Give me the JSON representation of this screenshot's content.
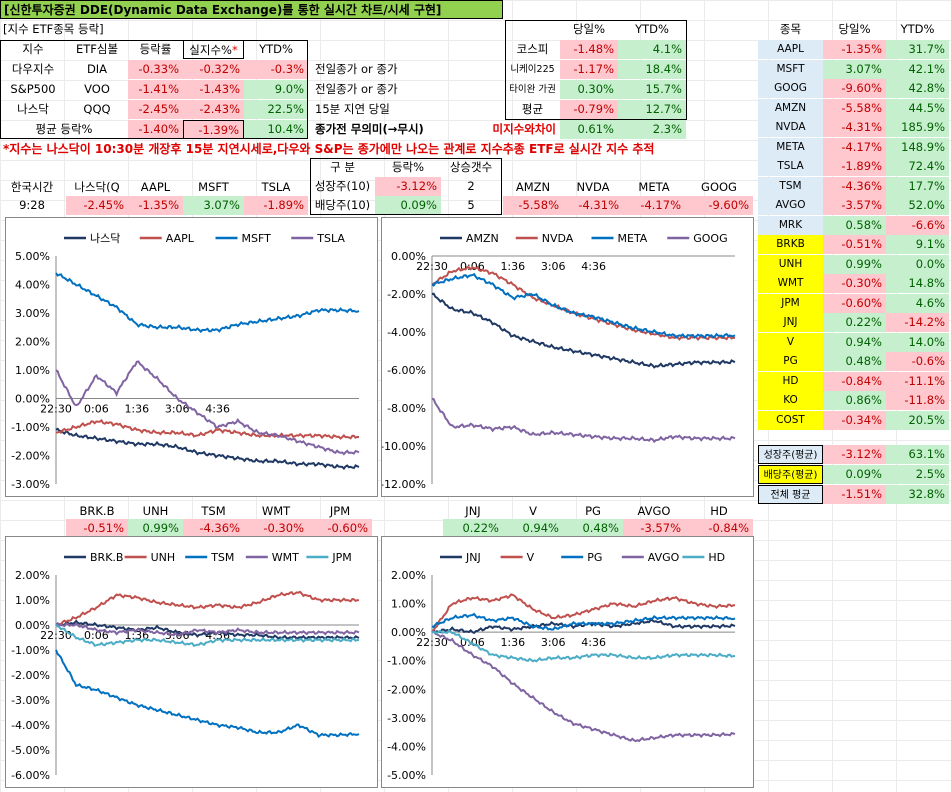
{
  "title": "[신한투자증권 DDE(Dynamic Data Exchange)를 통한 실시간 차트/시세 구현]",
  "index_section": {
    "caption": "[지수 ETF종목 등락]",
    "headers": [
      "지수",
      "ETF심볼",
      "등락률",
      "실지수%",
      "YTD%"
    ],
    "star": "*",
    "rows": [
      {
        "name": "다우지수",
        "etf": "DIA",
        "chg": "-0.33%",
        "real": "-0.32%",
        "ytd": "-0.3%",
        "note": "전일종가 or 종가"
      },
      {
        "name": "S&P500",
        "etf": "VOO",
        "chg": "-1.41%",
        "real": "-1.43%",
        "ytd": "9.0%",
        "note": "전일종가 or 종가"
      },
      {
        "name": "나스닥",
        "etf": "QQQ",
        "chg": "-2.45%",
        "real": "-2.43%",
        "ytd": "22.5%",
        "note": "15분 지연 당일"
      }
    ],
    "avg": {
      "label": "평균 등락%",
      "chg": "-1.40%",
      "real": "-1.39%",
      "ytd": "10.4%",
      "note": "종가전 무의미(→무시)"
    }
  },
  "korea": {
    "headers": [
      "당일%",
      "YTD%"
    ],
    "rows": [
      {
        "name": "코스피",
        "day": "-1.48%",
        "ytd": "4.1%"
      },
      {
        "name": "니케이225",
        "day": "-1.17%",
        "ytd": "18.4%"
      },
      {
        "name": "타이완 가권",
        "day": "0.30%",
        "ytd": "15.7%"
      },
      {
        "name": "평균",
        "day": "-0.79%",
        "ytd": "12.7%"
      }
    ],
    "diff_label": "미지수와차이",
    "diff_day": "0.61%",
    "diff_ytd": "2.3%"
  },
  "notice": "*지수는 나스닥이 10:30분 개장후 15분 지연시세로,다우와 S&P는 종가에만 나오는 관계로 지수추종 ETF로 실시간 지수 추적",
  "korea_time": {
    "label": "한국시간",
    "value": "9:28"
  },
  "quote_strip1": {
    "names": [
      "나스닥(Q",
      "AAPL",
      "MSFT",
      "TSLA"
    ],
    "values": [
      "-2.45%",
      "-1.35%",
      "3.07%",
      "-1.89%"
    ]
  },
  "growth_div": {
    "headers": [
      "구 분",
      "등락%",
      "상승갯수"
    ],
    "rows": [
      {
        "name": "성장주(10)",
        "chg": "-3.12%",
        "count": "2"
      },
      {
        "name": "배당주(10)",
        "chg": "0.09%",
        "count": "5"
      }
    ]
  },
  "quote_strip2": {
    "names": [
      "AMZN",
      "NVDA",
      "META",
      "GOOG"
    ],
    "values": [
      "-5.58%",
      "-4.31%",
      "-4.17%",
      "-9.60%"
    ]
  },
  "stock_table": {
    "headers": [
      "종목",
      "당일%",
      "YTD%"
    ],
    "rows": [
      {
        "name": "AAPL",
        "day": "-1.35%",
        "ytd": "31.7%",
        "group": "g"
      },
      {
        "name": "MSFT",
        "day": "3.07%",
        "ytd": "42.1%",
        "group": "g"
      },
      {
        "name": "GOOG",
        "day": "-9.60%",
        "ytd": "42.8%",
        "group": "g"
      },
      {
        "name": "AMZN",
        "day": "-5.58%",
        "ytd": "44.5%",
        "group": "g"
      },
      {
        "name": "NVDA",
        "day": "-4.31%",
        "ytd": "185.9%",
        "group": "g"
      },
      {
        "name": "META",
        "day": "-4.17%",
        "ytd": "148.9%",
        "group": "g"
      },
      {
        "name": "TSLA",
        "day": "-1.89%",
        "ytd": "72.4%",
        "group": "g"
      },
      {
        "name": "TSM",
        "day": "-4.36%",
        "ytd": "17.7%",
        "group": "g"
      },
      {
        "name": "AVGO",
        "day": "-3.57%",
        "ytd": "52.0%",
        "group": "g"
      },
      {
        "name": "MRK",
        "day": "0.58%",
        "ytd": "-6.6%",
        "group": "g"
      },
      {
        "name": "BRKB",
        "day": "-0.51%",
        "ytd": "9.1%",
        "group": "d"
      },
      {
        "name": "UNH",
        "day": "0.99%",
        "ytd": "0.0%",
        "group": "d"
      },
      {
        "name": "WMT",
        "day": "-0.30%",
        "ytd": "14.8%",
        "group": "d"
      },
      {
        "name": "JPM",
        "day": "-0.60%",
        "ytd": "4.6%",
        "group": "d"
      },
      {
        "name": "JNJ",
        "day": "0.22%",
        "ytd": "-14.2%",
        "group": "d"
      },
      {
        "name": "V",
        "day": "0.94%",
        "ytd": "14.0%",
        "group": "d"
      },
      {
        "name": "PG",
        "day": "0.48%",
        "ytd": "-0.6%",
        "group": "d"
      },
      {
        "name": "HD",
        "day": "-0.84%",
        "ytd": "-11.1%",
        "group": "d"
      },
      {
        "name": "KO",
        "day": "0.86%",
        "ytd": "-11.8%",
        "group": "d"
      },
      {
        "name": "COST",
        "day": "-0.34%",
        "ytd": "20.5%",
        "group": "d"
      }
    ],
    "summary": [
      {
        "name": "성장주(평균)",
        "day": "-3.12%",
        "ytd": "63.1%",
        "group": "g"
      },
      {
        "name": "배당주(평균)",
        "day": "0.09%",
        "ytd": "2.5%",
        "group": "d"
      },
      {
        "name": "전체 평균",
        "day": "-1.51%",
        "ytd": "32.8%",
        "group": "t"
      }
    ]
  },
  "quote_strip3": {
    "names": [
      "BRK.B",
      "UNH",
      "TSM",
      "WMT",
      "JPM"
    ],
    "values": [
      "-0.51%",
      "0.99%",
      "-4.36%",
      "-0.30%",
      "-0.60%"
    ]
  },
  "quote_strip4": {
    "names": [
      "JNJ",
      "V",
      "PG",
      "AVGO",
      "HD"
    ],
    "values": [
      "0.22%",
      "0.94%",
      "0.48%",
      "-3.57%",
      "-0.84%"
    ]
  },
  "colors": {
    "navy": "#1f3864",
    "red": "#c0504d",
    "blue": "#0070c0",
    "purple": "#8064a2",
    "teal": "#4bacc6",
    "pos_bg": "#c6efce",
    "neg_bg": "#ffc7ce"
  },
  "chart_data": [
    {
      "type": "line",
      "series": [
        {
          "name": "나스닥",
          "color": "#1f3864",
          "values": [
            -1.1,
            -1.3,
            -1.4,
            -1.5,
            -1.6,
            -1.6,
            -1.7,
            -1.9,
            -2.0,
            -2.1,
            -2.2,
            -2.2,
            -2.3,
            -2.3,
            -2.4,
            -2.4
          ]
        },
        {
          "name": "AAPL",
          "color": "#c0504d",
          "values": [
            -1.2,
            -1.0,
            -0.8,
            -0.9,
            -1.1,
            -1.2,
            -1.2,
            -1.3,
            -1.1,
            -1.2,
            -1.3,
            -1.3,
            -1.3,
            -1.3,
            -1.35,
            -1.35
          ]
        },
        {
          "name": "MSFT",
          "color": "#0070c0",
          "values": [
            4.4,
            4.0,
            3.6,
            3.2,
            2.6,
            2.5,
            2.5,
            2.4,
            2.4,
            2.6,
            2.7,
            2.8,
            2.9,
            3.1,
            3.1,
            3.07
          ]
        },
        {
          "name": "TSLA",
          "color": "#8064a2",
          "values": [
            1.0,
            -0.3,
            0.8,
            0.2,
            1.3,
            0.7,
            0.0,
            -0.5,
            -1.0,
            -0.8,
            -1.2,
            -1.3,
            -1.5,
            -1.7,
            -1.9,
            -1.89
          ]
        }
      ],
      "x": [
        "22:30",
        "",
        "0:06",
        "",
        "1:36",
        "",
        "3:06",
        "",
        "4:36",
        "",
        "",
        "",
        "",
        "",
        "",
        ""
      ],
      "ylim": [
        -3,
        5
      ],
      "yticks": [
        "5.00%",
        "4.00%",
        "3.00%",
        "2.00%",
        "1.00%",
        "0.00%",
        "-1.00%",
        "-2.00%",
        "-3.00%"
      ],
      "legend": "top"
    },
    {
      "type": "line",
      "series": [
        {
          "name": "AMZN",
          "color": "#1f3864",
          "values": [
            -2.0,
            -2.8,
            -3.0,
            -3.5,
            -4.2,
            -4.5,
            -4.8,
            -5.0,
            -5.2,
            -5.4,
            -5.6,
            -5.8,
            -5.7,
            -5.6,
            -5.6,
            -5.58
          ]
        },
        {
          "name": "NVDA",
          "color": "#c0504d",
          "values": [
            -1.5,
            -0.8,
            -0.6,
            -0.9,
            -1.5,
            -2.2,
            -2.6,
            -3.0,
            -3.3,
            -3.6,
            -3.9,
            -4.1,
            -4.3,
            -4.3,
            -4.3,
            -4.31
          ]
        },
        {
          "name": "META",
          "color": "#0070c0",
          "values": [
            -1.5,
            -1.2,
            -1.0,
            -1.5,
            -2.2,
            -2.0,
            -2.6,
            -3.0,
            -3.2,
            -3.5,
            -3.8,
            -4.0,
            -4.2,
            -4.2,
            -4.2,
            -4.17
          ]
        },
        {
          "name": "GOOG",
          "color": "#8064a2",
          "values": [
            -7.5,
            -9.0,
            -8.9,
            -9.1,
            -9.0,
            -9.4,
            -9.3,
            -9.4,
            -9.5,
            -9.6,
            -9.6,
            -9.7,
            -9.5,
            -9.6,
            -9.6,
            -9.6
          ]
        }
      ],
      "x": [
        "22:30",
        "",
        "0:06",
        "",
        "1:36",
        "",
        "3:06",
        "",
        "4:36",
        "",
        "",
        "",
        "",
        "",
        "",
        ""
      ],
      "ylim": [
        -12,
        0
      ],
      "yticks": [
        "0.00%",
        "-2.00%",
        "-4.00%",
        "-6.00%",
        "-8.00%",
        "-10.00%",
        "-12.00%"
      ],
      "legend": "top"
    },
    {
      "type": "line",
      "series": [
        {
          "name": "BRK.B",
          "color": "#1f3864",
          "values": [
            0.0,
            0.1,
            0.0,
            -0.1,
            -0.2,
            -0.1,
            -0.3,
            -0.4,
            -0.3,
            -0.4,
            -0.4,
            -0.5,
            -0.5,
            -0.5,
            -0.5,
            -0.51
          ]
        },
        {
          "name": "UNH",
          "color": "#c0504d",
          "values": [
            0.0,
            0.3,
            0.7,
            1.2,
            1.1,
            0.9,
            0.8,
            0.7,
            0.8,
            0.7,
            0.9,
            1.2,
            1.3,
            1.0,
            1.0,
            0.99
          ]
        },
        {
          "name": "TSM",
          "color": "#0070c0",
          "values": [
            -1.0,
            -2.4,
            -2.6,
            -2.9,
            -3.2,
            -3.4,
            -3.6,
            -3.8,
            -4.0,
            -4.1,
            -4.3,
            -4.3,
            -4.0,
            -4.4,
            -4.4,
            -4.36
          ]
        },
        {
          "name": "WMT",
          "color": "#8064a2",
          "values": [
            0.0,
            0.0,
            -0.2,
            -0.3,
            -0.2,
            -0.3,
            -0.4,
            -0.2,
            -0.3,
            -0.2,
            -0.3,
            -0.3,
            -0.3,
            -0.3,
            -0.3,
            -0.3
          ]
        },
        {
          "name": "JPM",
          "color": "#4bacc6",
          "values": [
            0.0,
            -0.5,
            -0.8,
            -0.7,
            -0.6,
            -0.6,
            -0.7,
            -0.8,
            -0.6,
            -0.6,
            -0.6,
            -0.6,
            -0.6,
            -0.6,
            -0.6,
            -0.6
          ]
        }
      ],
      "x": [
        "22:30",
        "",
        "0:06",
        "",
        "1:36",
        "",
        "3:06",
        "",
        "4:36",
        "",
        "",
        "",
        "",
        "",
        "",
        ""
      ],
      "ylim": [
        -6,
        2
      ],
      "yticks": [
        "2.00%",
        "1.00%",
        "0.00%",
        "-1.00%",
        "-2.00%",
        "-3.00%",
        "-4.00%",
        "-5.00%",
        "-6.00%"
      ],
      "legend": "top"
    },
    {
      "type": "line",
      "series": [
        {
          "name": "JNJ",
          "color": "#1f3864",
          "values": [
            0.0,
            0.1,
            0.0,
            0.2,
            0.1,
            0.2,
            0.3,
            0.2,
            0.3,
            0.2,
            0.3,
            0.4,
            0.2,
            0.2,
            0.2,
            0.22
          ]
        },
        {
          "name": "V",
          "color": "#c0504d",
          "values": [
            0.0,
            1.0,
            1.2,
            1.1,
            1.3,
            0.8,
            0.5,
            0.6,
            0.8,
            1.0,
            0.9,
            1.1,
            1.2,
            1.0,
            0.9,
            0.94
          ]
        },
        {
          "name": "PG",
          "color": "#0070c0",
          "values": [
            0.2,
            0.5,
            0.6,
            0.4,
            0.5,
            0.2,
            0.1,
            0.3,
            0.3,
            0.3,
            0.4,
            0.5,
            0.5,
            0.5,
            0.5,
            0.48
          ]
        },
        {
          "name": "AVGO",
          "color": "#8064a2",
          "values": [
            0.0,
            -0.3,
            -0.8,
            -1.2,
            -1.8,
            -2.3,
            -2.8,
            -3.2,
            -3.4,
            -3.6,
            -3.8,
            -3.7,
            -3.6,
            -3.6,
            -3.6,
            -3.57
          ]
        },
        {
          "name": "HD",
          "color": "#4bacc6",
          "values": [
            0.0,
            0.0,
            -0.4,
            -0.8,
            -0.9,
            -1.0,
            -0.9,
            -0.9,
            -0.8,
            -0.8,
            -0.9,
            -0.9,
            -0.8,
            -0.8,
            -0.8,
            -0.84
          ]
        }
      ],
      "x": [
        "22:30",
        "",
        "0:06",
        "",
        "1:36",
        "",
        "3:06",
        "",
        "4:36",
        "",
        "",
        "",
        "",
        "",
        "",
        ""
      ],
      "ylim": [
        -5,
        2
      ],
      "yticks": [
        "2.00%",
        "1.00%",
        "0.00%",
        "-1.00%",
        "-2.00%",
        "-3.00%",
        "-4.00%",
        "-5.00%"
      ],
      "legend": "top"
    }
  ]
}
